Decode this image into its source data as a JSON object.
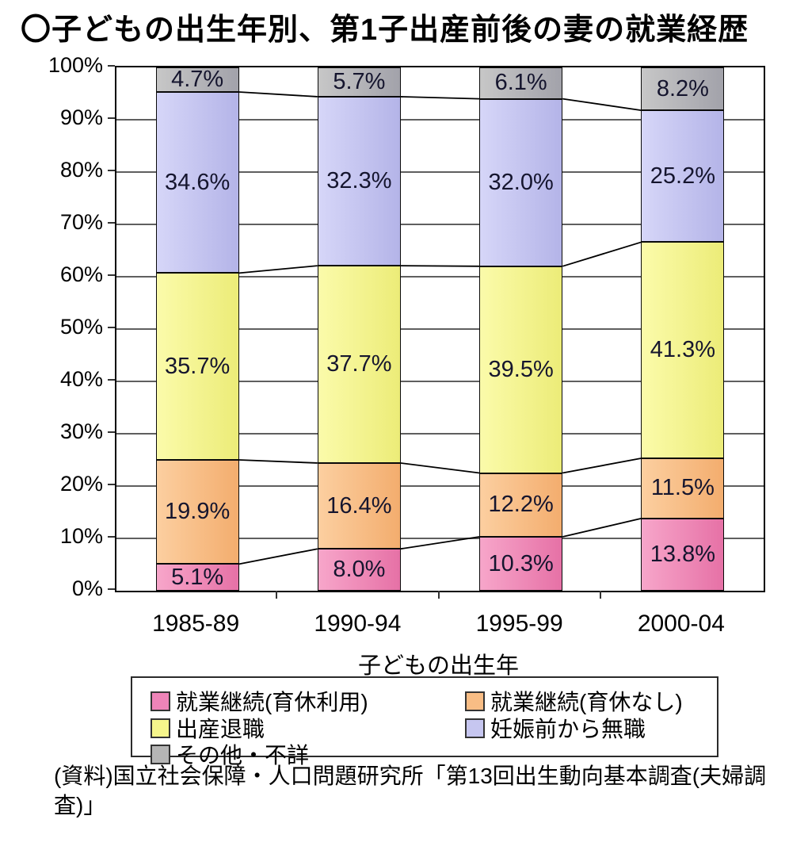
{
  "title": "〇子どもの出生年別、第1子出産前後の妻の就業経歴",
  "chart_data": {
    "type": "bar",
    "subtype": "stacked-percent-column",
    "title": "〇子どもの出生年別、第1子出産前後の妻の就業経歴",
    "categories": [
      "1985-89",
      "1990-94",
      "1995-99",
      "2000-04"
    ],
    "series": [
      {
        "name": "就業継続(育休利用)",
        "values": [
          5.1,
          8.0,
          10.3,
          13.8
        ],
        "color": "#ee84b8",
        "color_light": "#f7a6ca",
        "color_dark": "#e671a6"
      },
      {
        "name": "就業継続(育休なし)",
        "values": [
          19.9,
          16.4,
          12.2,
          11.5
        ],
        "color": "#f8bd85",
        "color_light": "#fccfa0",
        "color_dark": "#f3ad6e"
      },
      {
        "name": "出産退職",
        "values": [
          35.7,
          37.7,
          39.5,
          41.3
        ],
        "color": "#f6f68c",
        "color_light": "#fbfbaa",
        "color_dark": "#ecec78"
      },
      {
        "name": "妊娠前から無職",
        "values": [
          34.6,
          32.3,
          32.0,
          25.2
        ],
        "color": "#c6c6f0",
        "color_light": "#d6d6f8",
        "color_dark": "#b4b4e8"
      },
      {
        "name": "その他・不詳",
        "values": [
          4.7,
          5.7,
          6.1,
          8.2
        ],
        "color": "#b5b5b5",
        "color_light": "#c7c7c7",
        "color_dark": "#a2a2aa"
      }
    ],
    "data_labels": [
      [
        "5.1%",
        "8.0%",
        "10.3%",
        "13.8%"
      ],
      [
        "19.9%",
        "16.4%",
        "12.2%",
        "11.5%"
      ],
      [
        "35.7%",
        "37.7%",
        "39.5%",
        "41.3%"
      ],
      [
        "34.6%",
        "32.3%",
        "32.0%",
        "25.2%"
      ],
      [
        "4.7%",
        "5.7%",
        "6.1%",
        "8.2%"
      ]
    ],
    "xlabel": "子どもの出生年",
    "ylabel": "",
    "ylim": [
      0,
      100
    ],
    "ytick_labels": [
      "0%",
      "10%",
      "20%",
      "30%",
      "40%",
      "50%",
      "60%",
      "70%",
      "80%",
      "90%",
      "100%"
    ],
    "grid": true,
    "series_lines": true,
    "legend_position": "bottom"
  },
  "source": "(資料)国立社会保障・人口問題研究所「第13回出生動向基本調査(夫婦調査)」"
}
